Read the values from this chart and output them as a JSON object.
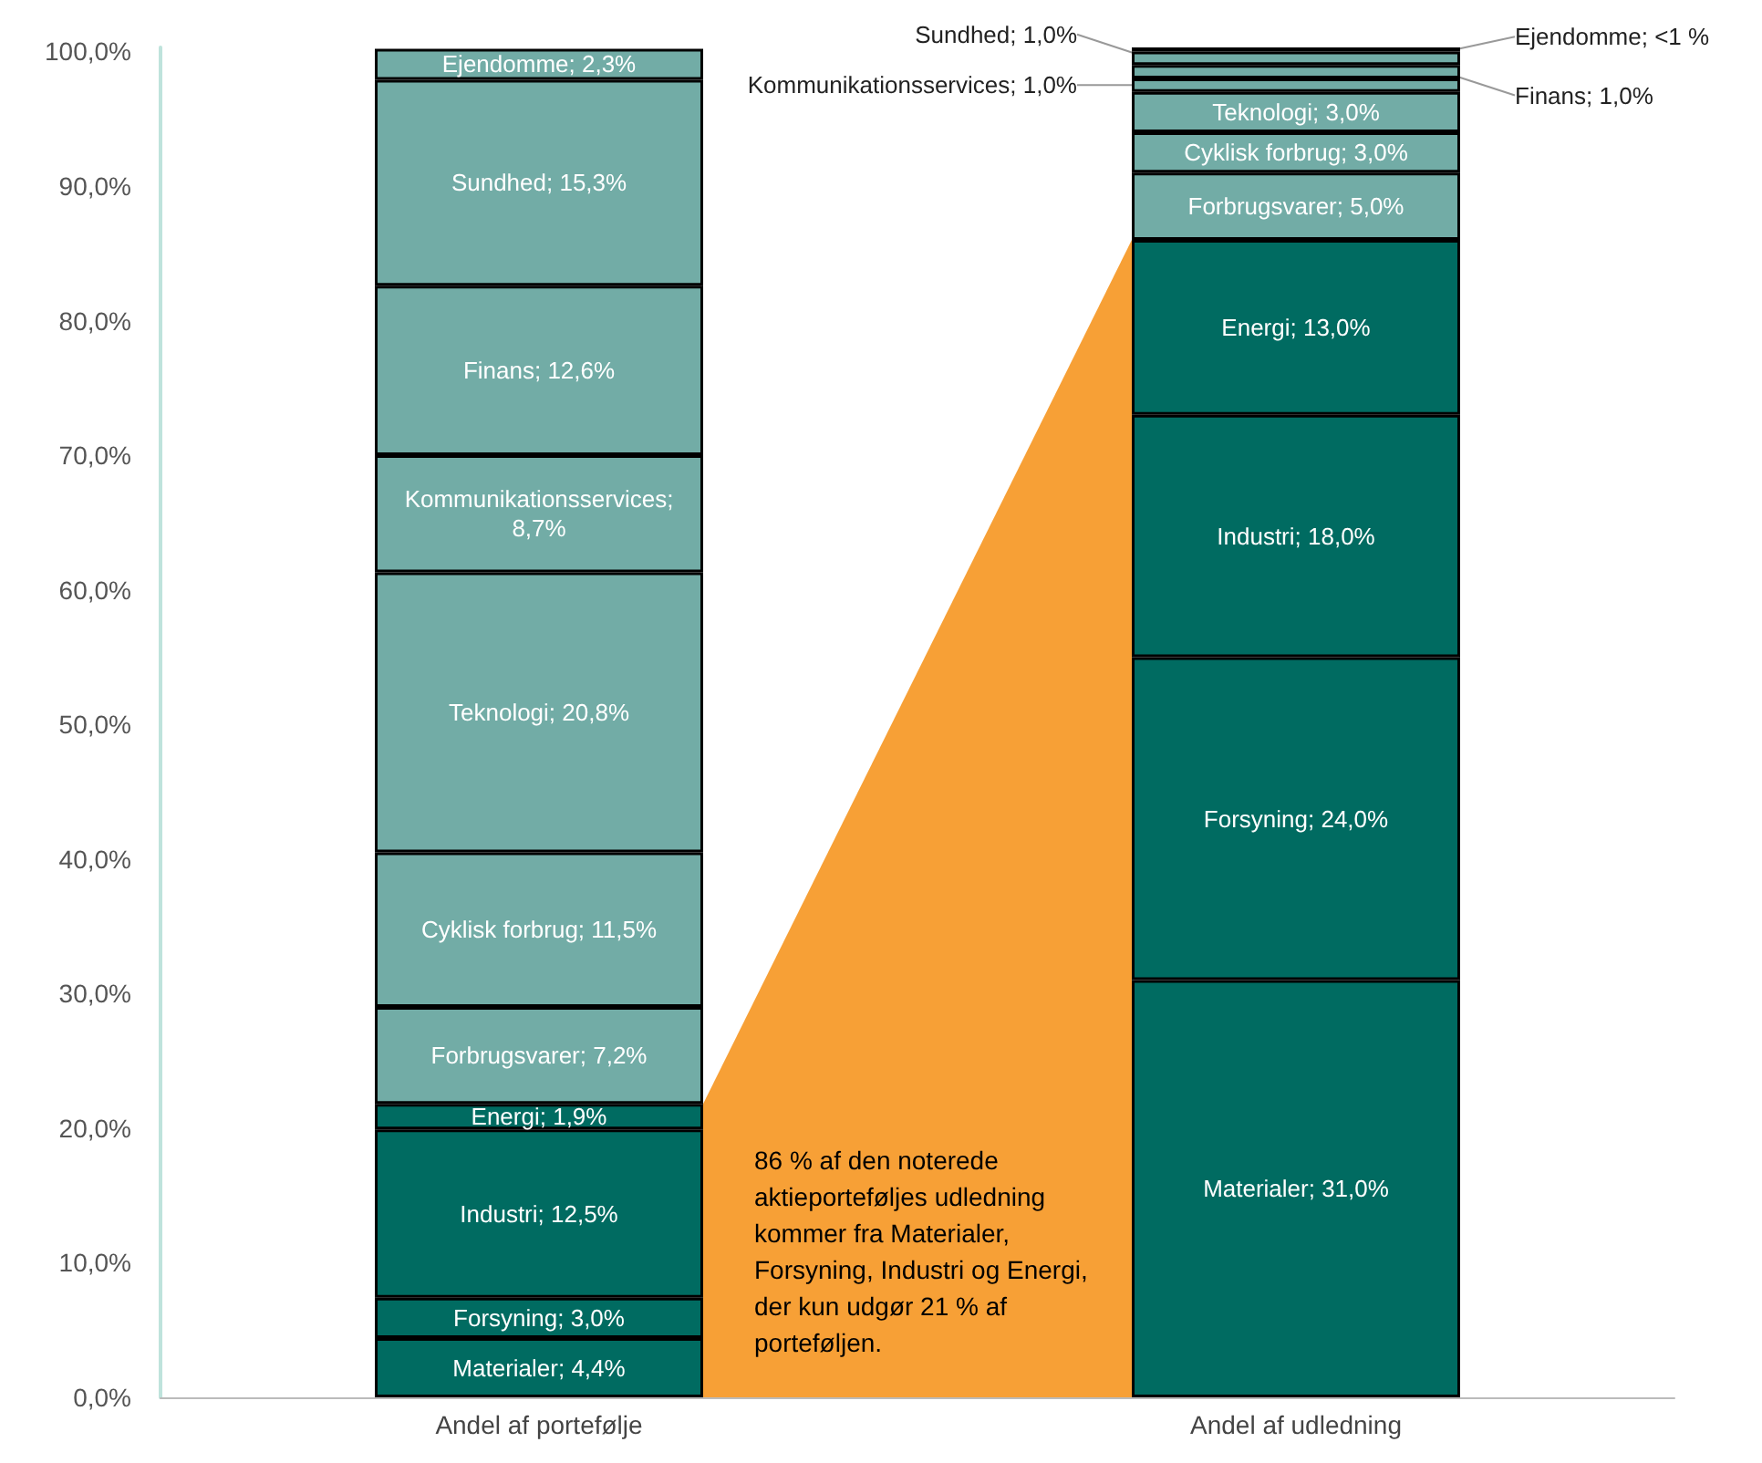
{
  "chart_data": {
    "type": "bar",
    "stacked": true,
    "categories": [
      "Andel af portefølje",
      "Andel af udledning"
    ],
    "series": [
      {
        "color": "#006b61",
        "values": [
          4.4,
          31.0
        ],
        "value_labels": [
          "Materialer; 4,4%",
          "Materialer; 31,0%"
        ]
      },
      {
        "color": "#006b61",
        "values": [
          3.0,
          24.0
        ],
        "value_labels": [
          "Forsyning; 3,0%",
          "Forsyning; 24,0%"
        ]
      },
      {
        "color": "#006b61",
        "values": [
          12.5,
          18.0
        ],
        "value_labels": [
          "Industri; 12,5%",
          "Industri; 18,0%"
        ]
      },
      {
        "color": "#006b61",
        "values": [
          1.9,
          13.0
        ],
        "value_labels": [
          "Energi; 1,9%",
          "Energi; 13,0%"
        ]
      },
      {
        "color": "#72aca6",
        "values": [
          7.2,
          5.0
        ],
        "value_labels": [
          "Forbrugsvarer; 7,2%",
          "Forbrugsvarer; 5,0%"
        ]
      },
      {
        "color": "#72aca6",
        "values": [
          11.5,
          3.0
        ],
        "value_labels": [
          "Cyklisk forbrug; 11,5%",
          "Cyklisk forbrug; 3,0%"
        ]
      },
      {
        "color": "#72aca6",
        "values": [
          20.8,
          3.0
        ],
        "value_labels": [
          "Teknologi; 20,8%",
          "Teknologi; 3,0%"
        ]
      },
      {
        "color": "#72aca6",
        "values": [
          8.7,
          1.0
        ],
        "value_labels": [
          "Kommunikationsservices; 8,7%",
          "Kommunikationsservices; 1,0%"
        ]
      },
      {
        "color": "#72aca6",
        "values": [
          12.6,
          1.0
        ],
        "value_labels": [
          "Finans; 12,6%",
          "Finans; 1,0%"
        ]
      },
      {
        "color": "#72aca6",
        "values": [
          15.3,
          1.0
        ],
        "value_labels": [
          "Sundhed; 15,3%",
          "Sundhed; 1,0%"
        ]
      },
      {
        "color": "#72aca6",
        "values": [
          2.3,
          0.3
        ],
        "value_labels": [
          "Ejendomme; 2,3%",
          "Ejendomme; <1 %"
        ]
      }
    ],
    "ylim": [
      0,
      100.3
    ],
    "yticks": [
      {
        "value": 0,
        "label": "0,0%"
      },
      {
        "value": 10,
        "label": "10,0%"
      },
      {
        "value": 20,
        "label": "20,0%"
      },
      {
        "value": 30,
        "label": "30,0%"
      },
      {
        "value": 40,
        "label": "40,0%"
      },
      {
        "value": 50,
        "label": "50,0%"
      },
      {
        "value": 60,
        "label": "60,0%"
      },
      {
        "value": 70,
        "label": "70,0%"
      },
      {
        "value": 80,
        "label": "80,0%"
      },
      {
        "value": 90,
        "label": "90,0%"
      },
      {
        "value": 100,
        "label": "100,0%"
      }
    ],
    "grid": false,
    "annotations": [
      "86 % af den noterede aktieporteføljes udledning kommer fra Materialer, Forsyning, Industri og Energi, der kun udgør 21 % af porteføljen."
    ]
  }
}
